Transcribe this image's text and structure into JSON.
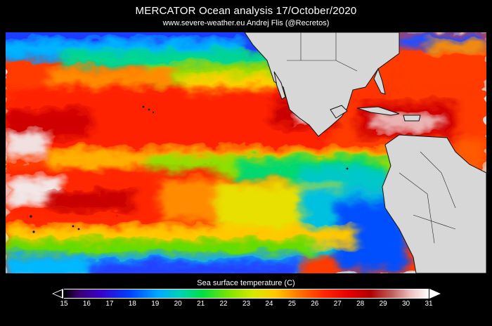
{
  "header": {
    "title": "MERCATOR Ocean analysis    17/October/2020",
    "subtitle": "www.severe-weather.eu   Andrej Flis (@Recretos)"
  },
  "map": {
    "land_color": "#d7d7d7",
    "coast_color": "#111111"
  },
  "legend": {
    "title": "Sea surface temperature (C)",
    "ticks": [
      "15",
      "16",
      "17",
      "18",
      "19",
      "20",
      "21",
      "22",
      "23",
      "24",
      "25",
      "26",
      "27",
      "28",
      "29",
      "30",
      "31"
    ]
  }
}
